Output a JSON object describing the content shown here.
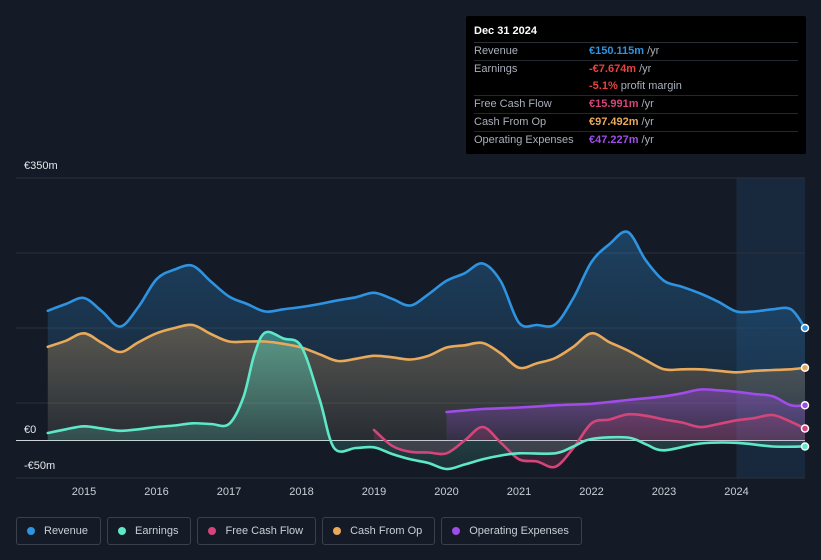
{
  "tooltip": {
    "date": "Dec 31 2024",
    "rows": [
      {
        "label": "Revenue",
        "value": "€150.115m",
        "unit": "/yr",
        "color": "#2e93e0"
      },
      {
        "label": "Earnings",
        "value": "-€7.674m",
        "unit": "/yr",
        "color": "#e8433f"
      },
      {
        "label": "",
        "value": "-5.1%",
        "unit": "profit margin",
        "color": "#e8433f"
      },
      {
        "label": "Free Cash Flow",
        "value": "€15.991m",
        "unit": "/yr",
        "color": "#d6457a"
      },
      {
        "label": "Cash From Op",
        "value": "€97.492m",
        "unit": "/yr",
        "color": "#e9a95a"
      },
      {
        "label": "Operating Expenses",
        "value": "€47.227m",
        "unit": "/yr",
        "color": "#9f4ce8"
      }
    ]
  },
  "legend": [
    {
      "label": "Revenue",
      "color": "#2e93e0"
    },
    {
      "label": "Earnings",
      "color": "#5ee8c8"
    },
    {
      "label": "Free Cash Flow",
      "color": "#d6457a"
    },
    {
      "label": "Cash From Op",
      "color": "#e9a95a"
    },
    {
      "label": "Operating Expenses",
      "color": "#9f4ce8"
    }
  ],
  "chart_data": {
    "type": "area",
    "title": "",
    "xlabel": "",
    "ylabel": "",
    "ylim": [
      -50,
      350
    ],
    "y_tick_labels": [
      "€350m",
      "€0",
      "-€50m"
    ],
    "x_tick_labels": [
      "2015",
      "2016",
      "2017",
      "2018",
      "2019",
      "2020",
      "2021",
      "2022",
      "2023",
      "2024"
    ],
    "x_range": [
      2014.0,
      2025.0
    ],
    "highlight_start": 2024.0,
    "series": [
      {
        "name": "Revenue",
        "color": "#2e93e0",
        "x": [
          2014.5,
          2014.75,
          2015.0,
          2015.25,
          2015.5,
          2015.75,
          2016.0,
          2016.25,
          2016.5,
          2016.75,
          2017.0,
          2017.25,
          2017.5,
          2017.75,
          2018.0,
          2018.25,
          2018.5,
          2018.75,
          2019.0,
          2019.25,
          2019.5,
          2019.75,
          2020.0,
          2020.25,
          2020.5,
          2020.75,
          2021.0,
          2021.25,
          2021.5,
          2021.75,
          2022.0,
          2022.25,
          2022.5,
          2022.75,
          2023.0,
          2023.25,
          2023.5,
          2023.75,
          2024.0,
          2024.25,
          2024.5,
          2024.75,
          2025.0
        ],
        "values": [
          173,
          182,
          190,
          172,
          152,
          178,
          215,
          228,
          233,
          212,
          192,
          182,
          172,
          175,
          178,
          182,
          187,
          191,
          197,
          189,
          180,
          195,
          213,
          223,
          236,
          212,
          157,
          154,
          155,
          190,
          238,
          262,
          278,
          240,
          213,
          205,
          196,
          185,
          172,
          172,
          175,
          175,
          150
        ]
      },
      {
        "name": "Cash From Op",
        "color": "#e9a95a",
        "x": [
          2014.5,
          2014.75,
          2015.0,
          2015.25,
          2015.5,
          2015.75,
          2016.0,
          2016.25,
          2016.5,
          2016.75,
          2017.0,
          2017.25,
          2017.5,
          2017.75,
          2018.0,
          2018.25,
          2018.5,
          2018.75,
          2019.0,
          2019.25,
          2019.5,
          2019.75,
          2020.0,
          2020.25,
          2020.5,
          2020.75,
          2021.0,
          2021.25,
          2021.5,
          2021.75,
          2022.0,
          2022.25,
          2022.5,
          2022.75,
          2023.0,
          2023.25,
          2023.5,
          2023.75,
          2024.0,
          2024.25,
          2024.5,
          2024.75,
          2025.0
        ],
        "values": [
          125,
          133,
          143,
          130,
          118,
          131,
          143,
          150,
          154,
          142,
          132,
          132,
          132,
          129,
          124,
          115,
          106,
          109,
          113,
          111,
          108,
          113,
          124,
          127,
          130,
          116,
          97,
          103,
          110,
          125,
          143,
          131,
          120,
          107,
          95,
          95,
          95,
          93,
          91,
          93,
          94,
          95,
          97
        ]
      },
      {
        "name": "Operating Expenses",
        "color": "#9f4ce8",
        "x": [
          2020.0,
          2020.5,
          2021.0,
          2021.5,
          2022.0,
          2022.5,
          2023.0,
          2023.25,
          2023.5,
          2023.75,
          2024.0,
          2024.25,
          2024.5,
          2024.75,
          2025.0
        ],
        "values": [
          38,
          42,
          44,
          47,
          49,
          54,
          59,
          63,
          68,
          67,
          65,
          62,
          59,
          47,
          47
        ]
      },
      {
        "name": "Free Cash Flow",
        "color": "#d6457a",
        "x": [
          2019.0,
          2019.25,
          2019.5,
          2019.75,
          2020.0,
          2020.25,
          2020.5,
          2020.75,
          2021.0,
          2021.25,
          2021.5,
          2021.75,
          2022.0,
          2022.25,
          2022.5,
          2022.75,
          2023.0,
          2023.25,
          2023.5,
          2023.75,
          2024.0,
          2024.25,
          2024.5,
          2024.75,
          2025.0
        ],
        "values": [
          14,
          -7,
          -15,
          -16,
          -17,
          0,
          18,
          -3,
          -25,
          -28,
          -35,
          -10,
          23,
          28,
          35,
          33,
          28,
          24,
          18,
          22,
          27,
          30,
          34,
          25,
          16
        ]
      },
      {
        "name": "Earnings",
        "color": "#5ee8c8",
        "x": [
          2014.5,
          2014.75,
          2015.0,
          2015.25,
          2015.5,
          2015.75,
          2016.0,
          2016.25,
          2016.5,
          2016.75,
          2017.0,
          2017.2,
          2017.35,
          2017.5,
          2017.75,
          2018.0,
          2018.25,
          2018.45,
          2018.75,
          2019.0,
          2019.25,
          2019.5,
          2019.75,
          2020.0,
          2020.25,
          2020.5,
          2020.75,
          2021.0,
          2021.5,
          2021.75,
          2022.0,
          2022.5,
          2022.75,
          2023.0,
          2023.5,
          2024.0,
          2024.5,
          2025.0
        ],
        "values": [
          10,
          15,
          19,
          16,
          13,
          15,
          18,
          20,
          23,
          22,
          22,
          58,
          115,
          144,
          136,
          125,
          55,
          -10,
          -10,
          -9,
          -18,
          -25,
          -30,
          -38,
          -32,
          -25,
          -20,
          -17,
          -17,
          -8,
          2,
          4,
          -5,
          -13,
          -4,
          -3,
          -8,
          -8
        ]
      }
    ]
  }
}
